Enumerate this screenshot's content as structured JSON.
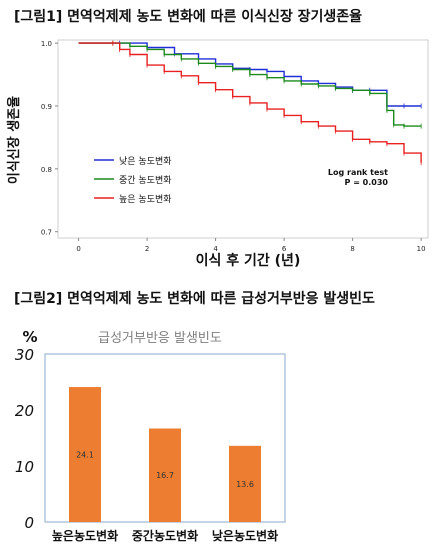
{
  "figures": [
    {
      "title": "[그림1] 면역억제제 농도 변화에 따른 이식신장 장기생존율"
    },
    {
      "title": "[그림2] 면역억제제 농도 변화에 따른 급성거부반응 발생빈도"
    }
  ],
  "chart_data": [
    {
      "type": "line",
      "title": "",
      "xlabel": "이식 후 기간 (년)",
      "ylabel": "이식신장 생존율",
      "xlim": [
        -0.6,
        10.2
      ],
      "ylim": [
        0.69,
        1.005
      ],
      "x_ticks": [
        "0",
        "2",
        "4",
        "6",
        "8",
        "10"
      ],
      "y_ticks": [
        "1.0",
        "0.9",
        "0.8",
        "0.7"
      ],
      "y_tick_values": [
        1.0,
        0.9,
        0.8,
        0.7
      ],
      "legend_position": "bottom-left",
      "annotation": {
        "line1": "Log rank test",
        "line2": "P = 0.030"
      },
      "series": [
        {
          "name": "낮은 농도변화",
          "color": "#1f2fd6",
          "x": [
            0,
            1.2,
            2.0,
            2.8,
            3.5,
            4.0,
            4.5,
            5.0,
            5.5,
            6.0,
            6.5,
            7.0,
            7.5,
            8.0,
            8.5,
            9.0,
            9.5,
            10.0
          ],
          "y": [
            1.0,
            1.0,
            0.993,
            0.983,
            0.975,
            0.967,
            0.96,
            0.958,
            0.955,
            0.947,
            0.94,
            0.936,
            0.93,
            0.925,
            0.925,
            0.9,
            0.9,
            0.9
          ]
        },
        {
          "name": "중간 농도변화",
          "color": "#1b8a1b",
          "x": [
            0,
            1.0,
            1.5,
            2.0,
            2.5,
            3.0,
            3.5,
            4.0,
            4.5,
            5.0,
            5.5,
            6.0,
            6.5,
            7.0,
            7.5,
            8.0,
            8.5,
            9.0,
            9.2,
            9.5,
            10.0
          ],
          "y": [
            1.0,
            1.0,
            0.995,
            0.99,
            0.982,
            0.975,
            0.968,
            0.963,
            0.958,
            0.95,
            0.945,
            0.94,
            0.935,
            0.932,
            0.928,
            0.925,
            0.92,
            0.893,
            0.87,
            0.868,
            0.868
          ]
        },
        {
          "name": "높은 농도변화",
          "color": "#e82020",
          "x": [
            0,
            1.0,
            1.2,
            1.5,
            2.0,
            2.5,
            3.0,
            3.5,
            4.0,
            4.5,
            5.0,
            5.5,
            6.0,
            6.5,
            7.0,
            7.5,
            8.0,
            8.5,
            9.0,
            9.5,
            10.0
          ],
          "y": [
            1.0,
            1.0,
            0.99,
            0.982,
            0.965,
            0.955,
            0.948,
            0.937,
            0.926,
            0.915,
            0.905,
            0.895,
            0.885,
            0.875,
            0.868,
            0.86,
            0.847,
            0.843,
            0.84,
            0.825,
            0.81
          ]
        }
      ]
    },
    {
      "type": "bar",
      "title": "급성거부반응 발생빈도",
      "ylabel": "%",
      "ylim": [
        0,
        30
      ],
      "y_ticks": [
        "0",
        "10",
        "20",
        "30"
      ],
      "y_tick_values": [
        0,
        10,
        20,
        30
      ],
      "categories": [
        "높은농도변화",
        "중간농도변화",
        "낮은농도변화"
      ],
      "values": [
        24.1,
        16.7,
        13.6
      ],
      "value_labels": [
        "24.1",
        "16.7",
        "13.6"
      ],
      "bar_color": "#ed7d31",
      "frame_color": "#9cb8d6"
    }
  ]
}
